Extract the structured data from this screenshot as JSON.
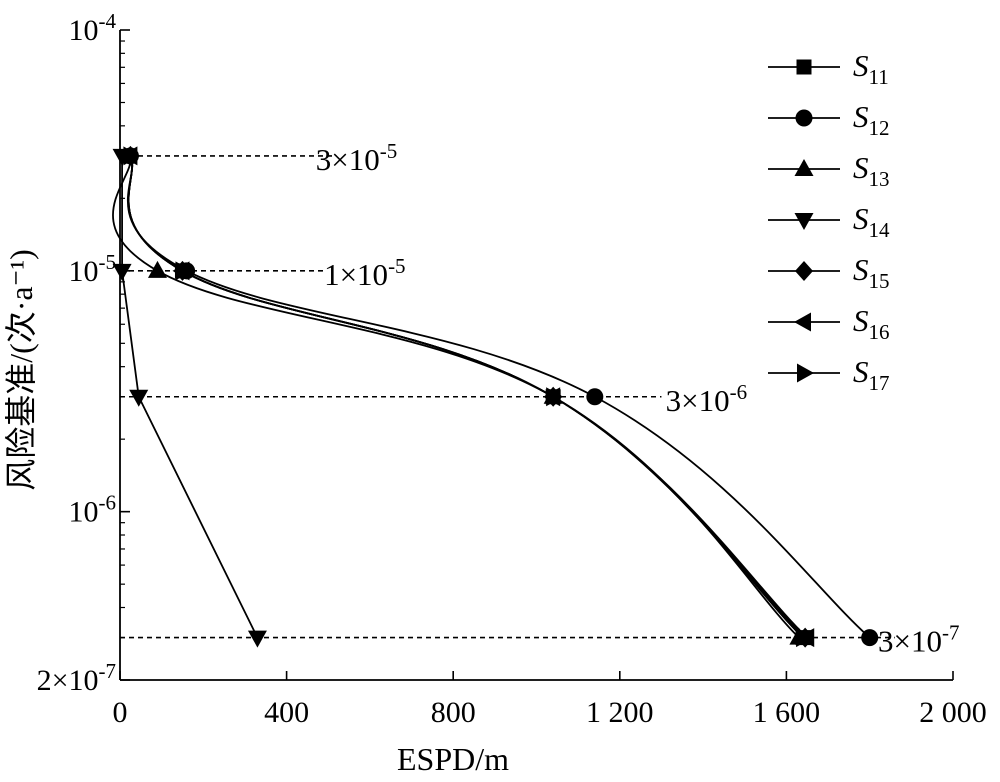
{
  "chart_data": {
    "type": "line",
    "xlabel": "ESPD/m",
    "ylabel": "风险基准/(次·a⁻¹)",
    "x_scale": "linear",
    "y_scale": "log",
    "xlim": [
      0,
      2000
    ],
    "ylim": [
      2e-07,
      0.0001
    ],
    "x_ticks": [
      {
        "value": 0,
        "label": "0"
      },
      {
        "value": 400,
        "label": "400"
      },
      {
        "value": 800,
        "label": "800"
      },
      {
        "value": 1200,
        "label": "1 200"
      },
      {
        "value": 1600,
        "label": "1 600"
      },
      {
        "value": 2000,
        "label": "2 000"
      }
    ],
    "y_ticks": [
      {
        "value": 0.0001,
        "base": "10",
        "exp": "-4"
      },
      {
        "value": 1e-05,
        "base": "10",
        "exp": "-5"
      },
      {
        "value": 1e-06,
        "base": "10",
        "exp": "-6"
      },
      {
        "value": 2e-07,
        "base": "2×10",
        "exp": "-7"
      }
    ],
    "reference_lines": [
      {
        "y": 3e-05,
        "x_end": 520,
        "label_base": "3×10",
        "label_exp": "-5",
        "label_x": 470
      },
      {
        "y": 1e-05,
        "x_end": 490,
        "label_base": "1×10",
        "label_exp": "-5",
        "label_x": 490
      },
      {
        "y": 3e-06,
        "x_end": 1300,
        "label_base": "3×10",
        "label_exp": "-6",
        "label_x": 1310
      },
      {
        "y": 3e-07,
        "x_end": 1860,
        "label_base": "3×10",
        "label_exp": "-7",
        "label_x": 1820
      }
    ],
    "legend": {
      "position": "right"
    },
    "series": [
      {
        "name": "S11",
        "label_main": "S",
        "label_sub": "11",
        "marker": "square",
        "points": [
          [
            25,
            3e-05
          ],
          [
            150,
            1e-05
          ],
          [
            1040,
            3e-06
          ],
          [
            1640,
            3e-07
          ]
        ],
        "markers": [
          1,
          2,
          3
        ]
      },
      {
        "name": "S12",
        "label_main": "S",
        "label_sub": "12",
        "marker": "circle",
        "points": [
          [
            25,
            3e-05
          ],
          [
            160,
            1e-05
          ],
          [
            1140,
            3e-06
          ],
          [
            1800,
            3e-07
          ]
        ],
        "markers": [
          0,
          1,
          2,
          3
        ]
      },
      {
        "name": "S13",
        "label_main": "S",
        "label_sub": "13",
        "marker": "triangle-up",
        "points": [
          [
            25,
            3e-05
          ],
          [
            90,
            1e-05
          ],
          [
            1040,
            3e-06
          ],
          [
            1630,
            3e-07
          ]
        ],
        "markers": [
          1,
          2,
          3
        ]
      },
      {
        "name": "S14",
        "label_main": "S",
        "label_sub": "14",
        "marker": "triangle-down",
        "points": [
          [
            5,
            3e-05
          ],
          [
            5,
            1e-05
          ],
          [
            45,
            3e-06
          ],
          [
            330,
            3e-07
          ]
        ],
        "markers": [
          0,
          1,
          2,
          3
        ]
      },
      {
        "name": "S15",
        "label_main": "S",
        "label_sub": "15",
        "marker": "diamond",
        "points": [
          [
            25,
            3e-05
          ],
          [
            150,
            1e-05
          ],
          [
            1040,
            3e-06
          ],
          [
            1645,
            3e-07
          ]
        ],
        "markers": [
          0,
          1,
          2,
          3
        ]
      },
      {
        "name": "S16",
        "label_main": "S",
        "label_sub": "16",
        "marker": "triangle-left",
        "points": [
          [
            25,
            3e-05
          ],
          [
            150,
            1e-05
          ],
          [
            1040,
            3e-06
          ],
          [
            1650,
            3e-07
          ]
        ],
        "markers": [
          0,
          1,
          2,
          3
        ]
      },
      {
        "name": "S17",
        "label_main": "S",
        "label_sub": "17",
        "marker": "triangle-right",
        "points": [
          [
            25,
            3e-05
          ],
          [
            150,
            1e-05
          ],
          [
            1040,
            3e-06
          ],
          [
            1640,
            3e-07
          ]
        ],
        "markers": [
          0,
          1,
          2,
          3
        ]
      }
    ]
  }
}
